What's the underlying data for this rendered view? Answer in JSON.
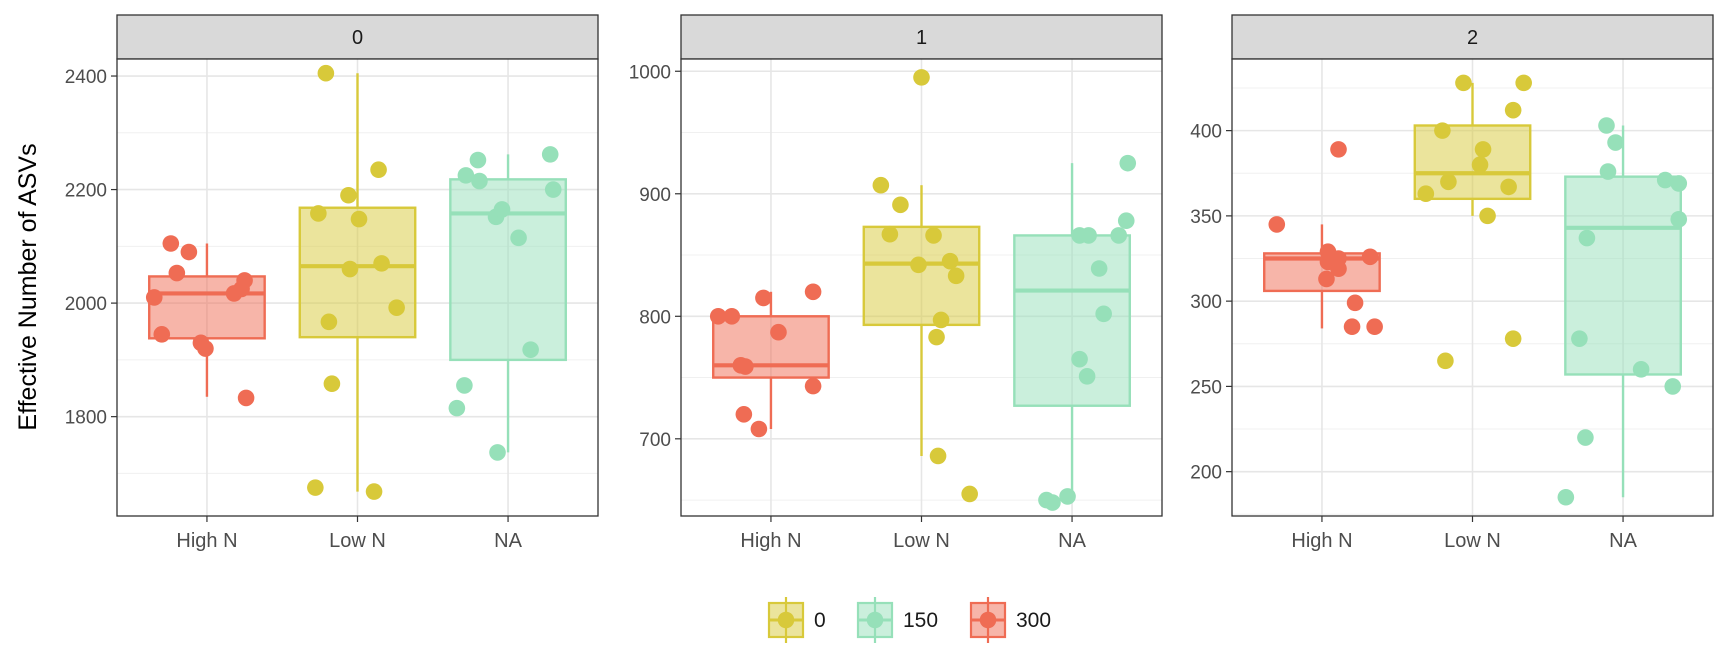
{
  "chart_data": {
    "type": "boxplot",
    "ylabel": "Effective Number of ASVs",
    "categories": [
      "High N",
      "Low N",
      "NA"
    ],
    "legend": {
      "placement": "bottom",
      "items": [
        {
          "label": "0",
          "color": "#d8c93a"
        },
        {
          "label": "150",
          "color": "#96e0b9"
        },
        {
          "label": "300",
          "color": "#ef6c54"
        }
      ]
    },
    "panels": [
      {
        "title": "0",
        "ylim": [
          1625,
          2430
        ],
        "yticks": [
          1800,
          2000,
          2200,
          2400
        ],
        "boxes": [
          {
            "category": "High N",
            "group": "300",
            "color": "#ef6c54",
            "min": 1835,
            "q1": 1938,
            "median": 2017,
            "q3": 2047,
            "max": 2105
          },
          {
            "category": "Low N",
            "group": "0",
            "color": "#d8c93a",
            "min": 1668,
            "q1": 1940,
            "median": 2065,
            "q3": 2168,
            "max": 2405
          },
          {
            "category": "NA",
            "group": "150",
            "color": "#96e0b9",
            "min": 1737,
            "q1": 1900,
            "median": 2158,
            "q3": 2218,
            "max": 2262
          }
        ],
        "points": [
          {
            "x": -0.35,
            "y": 2010,
            "g": "300"
          },
          {
            "x": -0.3,
            "y": 1945,
            "g": "300"
          },
          {
            "x": -0.24,
            "y": 2105,
            "g": "300"
          },
          {
            "x": -0.2,
            "y": 2053,
            "g": "300"
          },
          {
            "x": -0.12,
            "y": 2090,
            "g": "300"
          },
          {
            "x": -0.04,
            "y": 1930,
            "g": "300"
          },
          {
            "x": -0.01,
            "y": 1920,
            "g": "300"
          },
          {
            "x": 0.18,
            "y": 2017,
            "g": "300"
          },
          {
            "x": 0.23,
            "y": 2025,
            "g": "300"
          },
          {
            "x": 0.25,
            "y": 2040,
            "g": "300"
          },
          {
            "x": 0.26,
            "y": 1833,
            "g": "300"
          },
          {
            "x": 0.72,
            "y": 1675,
            "g": "0"
          },
          {
            "x": 0.74,
            "y": 2158,
            "g": "0"
          },
          {
            "x": 0.79,
            "y": 2405,
            "g": "0"
          },
          {
            "x": 0.81,
            "y": 1967,
            "g": "0"
          },
          {
            "x": 0.83,
            "y": 1858,
            "g": "0"
          },
          {
            "x": 0.95,
            "y": 2060,
            "g": "0"
          },
          {
            "x": 0.94,
            "y": 2190,
            "g": "0"
          },
          {
            "x": 1.01,
            "y": 2148,
            "g": "0"
          },
          {
            "x": 1.11,
            "y": 1668,
            "g": "0"
          },
          {
            "x": 1.14,
            "y": 2235,
            "g": "0"
          },
          {
            "x": 1.16,
            "y": 2070,
            "g": "0"
          },
          {
            "x": 1.26,
            "y": 1992,
            "g": "0"
          },
          {
            "x": 1.66,
            "y": 1815,
            "g": "150"
          },
          {
            "x": 1.71,
            "y": 1855,
            "g": "150"
          },
          {
            "x": 1.72,
            "y": 2225,
            "g": "150"
          },
          {
            "x": 1.8,
            "y": 2252,
            "g": "150"
          },
          {
            "x": 1.81,
            "y": 2215,
            "g": "150"
          },
          {
            "x": 1.93,
            "y": 1737,
            "g": "150"
          },
          {
            "x": 1.92,
            "y": 2152,
            "g": "150"
          },
          {
            "x": 1.96,
            "y": 2165,
            "g": "150"
          },
          {
            "x": 2.07,
            "y": 2115,
            "g": "150"
          },
          {
            "x": 2.15,
            "y": 1918,
            "g": "150"
          },
          {
            "x": 2.28,
            "y": 2262,
            "g": "150"
          },
          {
            "x": 2.3,
            "y": 2200,
            "g": "150"
          }
        ]
      },
      {
        "title": "1",
        "ylim": [
          637,
          1010
        ],
        "yticks": [
          700,
          800,
          900,
          1000
        ],
        "boxes": [
          {
            "category": "High N",
            "group": "300",
            "color": "#ef6c54",
            "min": 708,
            "q1": 750,
            "median": 760,
            "q3": 800,
            "max": 820
          },
          {
            "category": "Low N",
            "group": "0",
            "color": "#d8c93a",
            "min": 686,
            "q1": 793,
            "median": 843,
            "q3": 873,
            "max": 907
          },
          {
            "category": "NA",
            "group": "150",
            "color": "#96e0b9",
            "min": 650,
            "q1": 727,
            "median": 821,
            "q3": 866,
            "max": 925
          }
        ],
        "points": [
          {
            "x": -0.35,
            "y": 800,
            "g": "300"
          },
          {
            "x": -0.26,
            "y": 800,
            "g": "300"
          },
          {
            "x": -0.2,
            "y": 760,
            "g": "300"
          },
          {
            "x": -0.18,
            "y": 720,
            "g": "300"
          },
          {
            "x": -0.17,
            "y": 759,
            "g": "300"
          },
          {
            "x": -0.08,
            "y": 708,
            "g": "300"
          },
          {
            "x": -0.05,
            "y": 815,
            "g": "300"
          },
          {
            "x": 0.05,
            "y": 787,
            "g": "300"
          },
          {
            "x": 0.28,
            "y": 820,
            "g": "300"
          },
          {
            "x": 0.28,
            "y": 743,
            "g": "300"
          },
          {
            "x": 0.73,
            "y": 907,
            "g": "0"
          },
          {
            "x": 0.79,
            "y": 867,
            "g": "0"
          },
          {
            "x": 0.86,
            "y": 891,
            "g": "0"
          },
          {
            "x": 0.98,
            "y": 842,
            "g": "0"
          },
          {
            "x": 1.0,
            "y": 995,
            "g": "0"
          },
          {
            "x": 1.08,
            "y": 866,
            "g": "0"
          },
          {
            "x": 1.1,
            "y": 783,
            "g": "0"
          },
          {
            "x": 1.11,
            "y": 686,
            "g": "0"
          },
          {
            "x": 1.13,
            "y": 797,
            "g": "0"
          },
          {
            "x": 1.19,
            "y": 845,
            "g": "0"
          },
          {
            "x": 1.23,
            "y": 833,
            "g": "0"
          },
          {
            "x": 1.32,
            "y": 655,
            "g": "0"
          },
          {
            "x": 1.83,
            "y": 650,
            "g": "150"
          },
          {
            "x": 1.87,
            "y": 648,
            "g": "150"
          },
          {
            "x": 1.97,
            "y": 653,
            "g": "150"
          },
          {
            "x": 2.05,
            "y": 866,
            "g": "150"
          },
          {
            "x": 2.05,
            "y": 765,
            "g": "150"
          },
          {
            "x": 2.11,
            "y": 866,
            "g": "150"
          },
          {
            "x": 2.1,
            "y": 751,
            "g": "150"
          },
          {
            "x": 2.18,
            "y": 839,
            "g": "150"
          },
          {
            "x": 2.21,
            "y": 802,
            "g": "150"
          },
          {
            "x": 2.31,
            "y": 866,
            "g": "150"
          },
          {
            "x": 2.36,
            "y": 878,
            "g": "150"
          },
          {
            "x": 2.37,
            "y": 925,
            "g": "150"
          }
        ]
      },
      {
        "title": "2",
        "ylim": [
          174,
          442
        ],
        "yticks": [
          200,
          250,
          300,
          350,
          400
        ],
        "boxes": [
          {
            "category": "High N",
            "group": "300",
            "color": "#ef6c54",
            "min": 284,
            "q1": 306,
            "median": 325,
            "q3": 328,
            "max": 345
          },
          {
            "category": "Low N",
            "group": "0",
            "color": "#d8c93a",
            "min": 350,
            "q1": 360,
            "median": 375,
            "q3": 403,
            "max": 428
          },
          {
            "category": "NA",
            "group": "150",
            "color": "#96e0b9",
            "min": 185,
            "q1": 257,
            "median": 343,
            "q3": 373,
            "max": 403
          }
        ],
        "points": [
          {
            "x": -0.3,
            "y": 345,
            "g": "300"
          },
          {
            "x": 0.03,
            "y": 313,
            "g": "300"
          },
          {
            "x": 0.04,
            "y": 329,
            "g": "300"
          },
          {
            "x": 0.04,
            "y": 323,
            "g": "300"
          },
          {
            "x": 0.11,
            "y": 325,
            "g": "300"
          },
          {
            "x": 0.11,
            "y": 319,
            "g": "300"
          },
          {
            "x": 0.11,
            "y": 389,
            "g": "300"
          },
          {
            "x": 0.2,
            "y": 285,
            "g": "300"
          },
          {
            "x": 0.22,
            "y": 299,
            "g": "300"
          },
          {
            "x": 0.32,
            "y": 326,
            "g": "300"
          },
          {
            "x": 0.35,
            "y": 285,
            "g": "300"
          },
          {
            "x": 0.69,
            "y": 363,
            "g": "0"
          },
          {
            "x": 0.8,
            "y": 400,
            "g": "0"
          },
          {
            "x": 0.84,
            "y": 370,
            "g": "0"
          },
          {
            "x": 0.82,
            "y": 265,
            "g": "0"
          },
          {
            "x": 0.94,
            "y": 428,
            "g": "0"
          },
          {
            "x": 1.05,
            "y": 380,
            "g": "0"
          },
          {
            "x": 1.07,
            "y": 389,
            "g": "0"
          },
          {
            "x": 1.1,
            "y": 350,
            "g": "0"
          },
          {
            "x": 1.24,
            "y": 367,
            "g": "0"
          },
          {
            "x": 1.27,
            "y": 278,
            "g": "0"
          },
          {
            "x": 1.27,
            "y": 412,
            "g": "0"
          },
          {
            "x": 1.34,
            "y": 428,
            "g": "0"
          },
          {
            "x": 1.62,
            "y": 185,
            "g": "150"
          },
          {
            "x": 1.71,
            "y": 278,
            "g": "150"
          },
          {
            "x": 1.75,
            "y": 220,
            "g": "150"
          },
          {
            "x": 1.76,
            "y": 337,
            "g": "150"
          },
          {
            "x": 1.89,
            "y": 403,
            "g": "150"
          },
          {
            "x": 1.9,
            "y": 376,
            "g": "150"
          },
          {
            "x": 1.95,
            "y": 393,
            "g": "150"
          },
          {
            "x": 2.12,
            "y": 260,
            "g": "150"
          },
          {
            "x": 2.28,
            "y": 371,
            "g": "150"
          },
          {
            "x": 2.33,
            "y": 250,
            "g": "150"
          },
          {
            "x": 2.37,
            "y": 348,
            "g": "150"
          },
          {
            "x": 2.37,
            "y": 369,
            "g": "150"
          }
        ]
      }
    ]
  }
}
